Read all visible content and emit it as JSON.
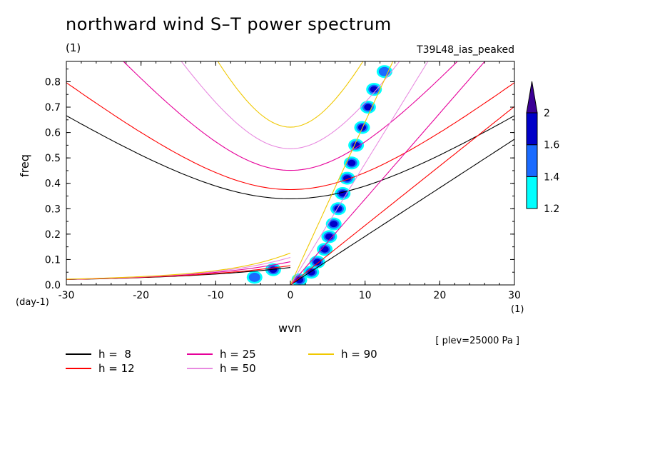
{
  "chart_data": {
    "type": "contour",
    "title": "northward wind S–T power spectrum",
    "unit_top_left": "(1)",
    "experiment": "T39L48_ias_peaked",
    "xlabel": "wvn",
    "ylabel": "freq",
    "x_unit": "(1)",
    "y_unit": "(day-1)",
    "annotation": "[ plev=25000 Pa ]",
    "xlim": [
      -30,
      30
    ],
    "ylim": [
      0,
      0.88
    ],
    "x_ticks": [
      -30,
      -20,
      -10,
      0,
      10,
      20,
      30
    ],
    "x_tick_labels": [
      "-30",
      "-20",
      "-10",
      "0",
      "10",
      "20",
      "30"
    ],
    "y_ticks": [
      0,
      0.1,
      0.2,
      0.3,
      0.4,
      0.5,
      0.6,
      0.7,
      0.8
    ],
    "y_tick_labels": [
      "0.0",
      "0.1",
      "0.2",
      "0.3",
      "0.4",
      "0.5",
      "0.6",
      "0.7",
      "0.8"
    ],
    "colorbar": {
      "levels": [
        1.2,
        1.4,
        1.6,
        2
      ],
      "level_labels": [
        "1.2",
        "1.4",
        "1.6",
        "2"
      ],
      "colors": [
        "#00ffff",
        "#1a6bff",
        "#0000c8",
        "#3c0096"
      ]
    },
    "dispersion_curves": [
      {
        "name": "h =  8",
        "h": 8,
        "color": "#000000"
      },
      {
        "name": "h = 12",
        "h": 12,
        "color": "#ff0000"
      },
      {
        "name": "h = 25",
        "h": 25,
        "color": "#e6009a"
      },
      {
        "name": "h = 50",
        "h": 50,
        "color": "#e88ae0"
      },
      {
        "name": "h = 90",
        "h": 90,
        "color": "#f0c800"
      }
    ],
    "spectral_peaks": [
      {
        "k": 1.2,
        "f": 0.02,
        "level": 2
      },
      {
        "k": 2.8,
        "f": 0.05,
        "level": 2
      },
      {
        "k": 3.6,
        "f": 0.09,
        "level": 2
      },
      {
        "k": 4.6,
        "f": 0.14,
        "level": 2
      },
      {
        "k": 5.2,
        "f": 0.19,
        "level": 2
      },
      {
        "k": 5.8,
        "f": 0.24,
        "level": 1.6
      },
      {
        "k": 6.4,
        "f": 0.3,
        "level": 2
      },
      {
        "k": 7.0,
        "f": 0.36,
        "level": 1.6
      },
      {
        "k": 7.6,
        "f": 0.42,
        "level": 1.6
      },
      {
        "k": 8.2,
        "f": 0.48,
        "level": 2
      },
      {
        "k": 8.8,
        "f": 0.55,
        "level": 1.6
      },
      {
        "k": 9.6,
        "f": 0.62,
        "level": 1.6
      },
      {
        "k": 10.4,
        "f": 0.7,
        "level": 2
      },
      {
        "k": 11.2,
        "f": 0.77,
        "level": 1.6
      },
      {
        "k": 12.6,
        "f": 0.84,
        "level": 1.4
      },
      {
        "k": -2.3,
        "f": 0.06,
        "level": 1.6
      },
      {
        "k": -4.8,
        "f": 0.03,
        "level": 1.4
      }
    ]
  }
}
